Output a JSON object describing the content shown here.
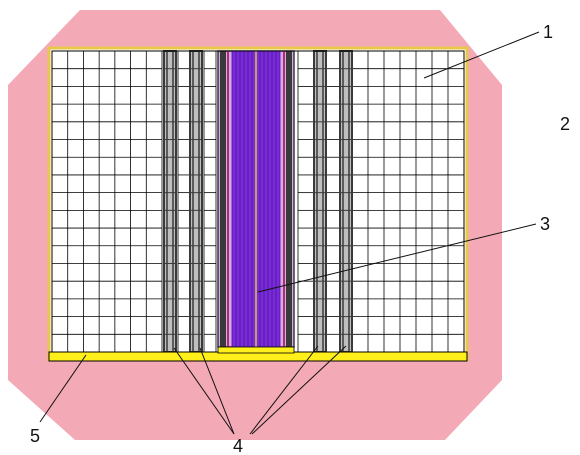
{
  "colors": {
    "background": "#ffffff",
    "outer_region": "#f4a9b6",
    "cell": "#ffffff",
    "grid_line": "#000000",
    "cell_border": "#e8c84a",
    "bottom_plate": "#ffef1a",
    "channel_dark": "#3a3a3a",
    "channel_light": "#bfbfbf",
    "core_rods": "#7a2ad8",
    "core_light": "#d7a8f0",
    "core_edge": "#b0306a"
  },
  "callouts": [
    {
      "id": "1",
      "text": "1"
    },
    {
      "id": "2",
      "text": "2"
    },
    {
      "id": "3",
      "text": "3"
    },
    {
      "id": "4",
      "text": "4"
    },
    {
      "id": "5",
      "text": "5"
    }
  ]
}
